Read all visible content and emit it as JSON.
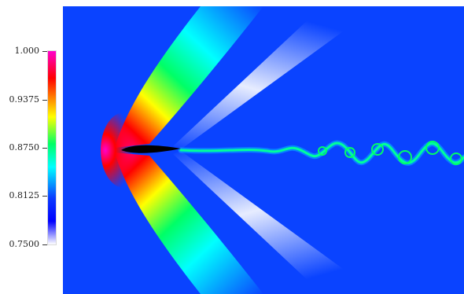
{
  "colorbar": {
    "ticks": [
      "1.000",
      "0.9375",
      "0.8750",
      "0.8125",
      "0.7500"
    ],
    "colors": {
      "min": "#ffffff",
      "low": "#0000ff",
      "cyan": "#00ffff",
      "green": "#00ff66",
      "yellow": "#ffff00",
      "red": "#ff0000",
      "max": "#ff00cc"
    }
  },
  "field": {
    "background": "#0a43ff"
  }
}
